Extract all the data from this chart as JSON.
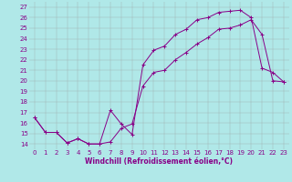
{
  "xlabel": "Windchill (Refroidissement éolien,°C)",
  "ylabel": "",
  "bg_color": "#b0e8e8",
  "grid_color": "#999999",
  "line_color": "#880088",
  "marker": "+",
  "xlim": [
    -0.5,
    23.5
  ],
  "ylim": [
    13.5,
    27.5
  ],
  "xticks": [
    0,
    1,
    2,
    3,
    4,
    5,
    6,
    7,
    8,
    9,
    10,
    11,
    12,
    13,
    14,
    15,
    16,
    17,
    18,
    19,
    20,
    21,
    22,
    23
  ],
  "yticks": [
    14,
    15,
    16,
    17,
    18,
    19,
    20,
    21,
    22,
    23,
    24,
    25,
    26,
    27
  ],
  "line1_x": [
    0,
    1,
    2,
    3,
    4,
    5,
    6,
    7,
    8,
    9,
    10,
    11,
    12,
    13,
    14,
    15,
    16,
    17,
    18,
    19,
    20,
    21,
    22,
    23
  ],
  "line1_y": [
    16.5,
    15.1,
    15.1,
    14.1,
    14.5,
    14.0,
    14.0,
    17.2,
    15.9,
    14.9,
    21.5,
    22.9,
    23.3,
    24.4,
    24.9,
    25.8,
    26.0,
    26.5,
    26.6,
    26.7,
    26.0,
    21.2,
    20.8,
    19.9
  ],
  "line2_x": [
    0,
    1,
    2,
    3,
    4,
    5,
    6,
    7,
    8,
    9,
    10,
    11,
    12,
    13,
    14,
    15,
    16,
    17,
    18,
    19,
    20,
    21,
    22,
    23
  ],
  "line2_y": [
    16.5,
    15.1,
    15.1,
    14.1,
    14.5,
    14.0,
    14.0,
    14.2,
    15.5,
    15.9,
    19.5,
    20.8,
    21.0,
    22.0,
    22.7,
    23.5,
    24.1,
    24.9,
    25.0,
    25.3,
    25.8,
    24.4,
    20.0,
    19.9
  ],
  "font_size_label": 5.5,
  "font_size_tick": 5.0,
  "tick_label_color": "#880088",
  "linewidth": 0.7,
  "markersize": 2.5,
  "markeredgewidth": 0.7
}
